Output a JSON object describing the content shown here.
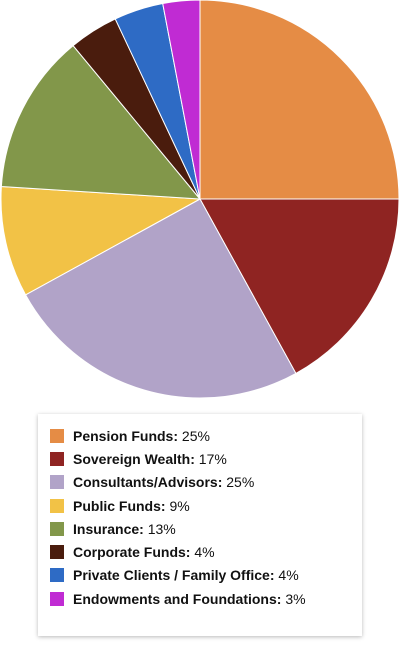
{
  "chart_data": {
    "type": "pie",
    "slices": [
      {
        "label": "Pension Funds",
        "value": 25,
        "value_label": "25%",
        "color": "#e58c45"
      },
      {
        "label": "Sovereign Wealth",
        "value": 17,
        "value_label": "17%",
        "color": "#8f2422"
      },
      {
        "label": "Consultants/Advisors",
        "value": 25,
        "value_label": "25%",
        "color": "#b1a3c8"
      },
      {
        "label": "Public Funds",
        "value": 9,
        "value_label": "9%",
        "color": "#f2c246"
      },
      {
        "label": "Insurance",
        "value": 13,
        "value_label": "13%",
        "color": "#82974a"
      },
      {
        "label": "Corporate Funds",
        "value": 4,
        "value_label": "4%",
        "color": "#4a1c0d"
      },
      {
        "label": "Private Clients / Family Office",
        "value": 4,
        "value_label": "4%",
        "color": "#2e6bc5"
      },
      {
        "label": "Endowments and Foundations",
        "value": 3,
        "value_label": "3%",
        "color": "#c02bd3"
      }
    ],
    "legend_position": "bottom"
  }
}
